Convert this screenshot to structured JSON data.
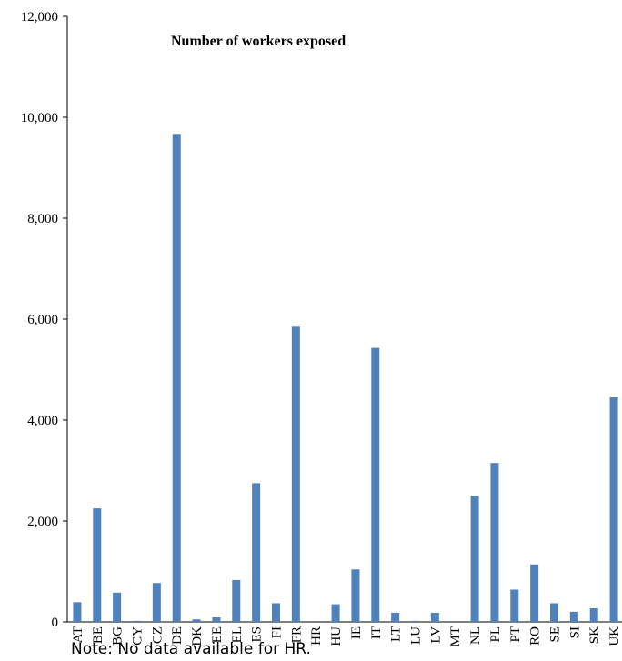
{
  "chart_data": {
    "type": "bar",
    "title": "Number  of workers exposed",
    "categories": [
      "AT",
      "BE",
      "BG",
      "CY",
      "CZ",
      "DE",
      "DK",
      "EE",
      "EL",
      "ES",
      "FI",
      "FR",
      "HR",
      "HU",
      "IE",
      "IT",
      "LT",
      "LU",
      "LV",
      "MT",
      "NL",
      "PL",
      "PT",
      "RO",
      "SE",
      "SI",
      "SK",
      "UK"
    ],
    "values": [
      390,
      2250,
      580,
      20,
      770,
      9670,
      50,
      90,
      830,
      2750,
      370,
      5850,
      0,
      350,
      1040,
      5430,
      180,
      20,
      180,
      0,
      2500,
      3150,
      640,
      1140,
      370,
      200,
      270,
      4450
    ],
    "ylim": [
      0,
      12000
    ],
    "yticks": [
      "0",
      "2,000",
      "4,000",
      "6,000",
      "8,000",
      "10,000",
      "12,000"
    ],
    "bar_color": "#4f81bd",
    "grid": false,
    "legend": "none",
    "xlabel": "",
    "ylabel": ""
  },
  "note": "Note: No data available for HR."
}
